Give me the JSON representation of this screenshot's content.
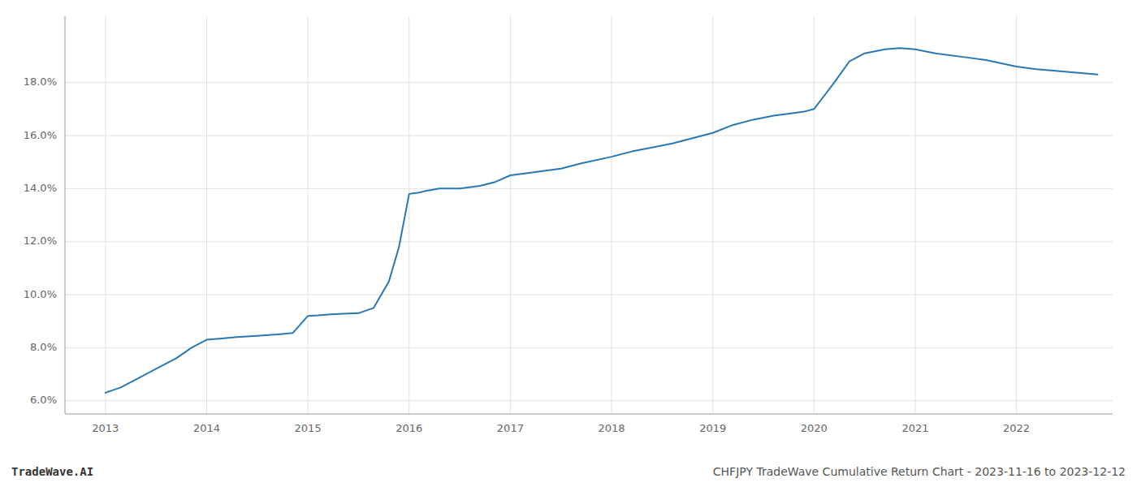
{
  "chart_data": {
    "type": "line",
    "title": "CHFJPY TradeWave Cumulative Return Chart - 2023-11-16 to 2023-12-12",
    "annotations": [
      "TradeWave.AI"
    ],
    "color": "#2878b5",
    "grid": true,
    "x": [
      2013.0,
      2013.15,
      2013.3,
      2013.5,
      2013.7,
      2013.85,
      2014.0,
      2014.15,
      2014.3,
      2014.5,
      2014.7,
      2014.85,
      2015.0,
      2015.1,
      2015.2,
      2015.35,
      2015.5,
      2015.65,
      2015.8,
      2015.9,
      2016.0,
      2016.1,
      2016.15,
      2016.3,
      2016.5,
      2016.7,
      2016.85,
      2017.0,
      2017.2,
      2017.5,
      2017.7,
      2018.0,
      2018.2,
      2018.4,
      2018.6,
      2018.8,
      2019.0,
      2019.2,
      2019.4,
      2019.6,
      2019.8,
      2019.9,
      2020.0,
      2020.1,
      2020.2,
      2020.35,
      2020.5,
      2020.7,
      2020.85,
      2021.0,
      2021.2,
      2021.5,
      2021.7,
      2022.0,
      2022.2,
      2022.5,
      2022.8
    ],
    "values": [
      6.3,
      6.5,
      6.8,
      7.2,
      7.6,
      8.0,
      8.3,
      8.35,
      8.4,
      8.45,
      8.5,
      8.55,
      9.2,
      9.22,
      9.25,
      9.28,
      9.3,
      9.5,
      10.5,
      11.8,
      13.8,
      13.85,
      13.9,
      14.0,
      14.0,
      14.1,
      14.25,
      14.5,
      14.6,
      14.75,
      14.95,
      15.2,
      15.4,
      15.55,
      15.7,
      15.9,
      16.1,
      16.4,
      16.6,
      16.75,
      16.85,
      16.9,
      17.0,
      17.5,
      18.0,
      18.8,
      19.1,
      19.25,
      19.3,
      19.25,
      19.1,
      18.95,
      18.85,
      18.6,
      18.5,
      18.4,
      18.3
    ],
    "xlim": [
      2012.6,
      2022.95
    ],
    "ylim": [
      5.5,
      20.5
    ],
    "xticks": [
      2013,
      2014,
      2015,
      2016,
      2017,
      2018,
      2019,
      2020,
      2021,
      2022
    ],
    "yticks": [
      {
        "value": 6.0,
        "label": "6.0%"
      },
      {
        "value": 8.0,
        "label": "8.0%"
      },
      {
        "value": 10.0,
        "label": "10.0%"
      },
      {
        "value": 12.0,
        "label": "12.0%"
      },
      {
        "value": 14.0,
        "label": "14.0%"
      },
      {
        "value": 16.0,
        "label": "16.0%"
      },
      {
        "value": 18.0,
        "label": "18.0%"
      }
    ]
  }
}
